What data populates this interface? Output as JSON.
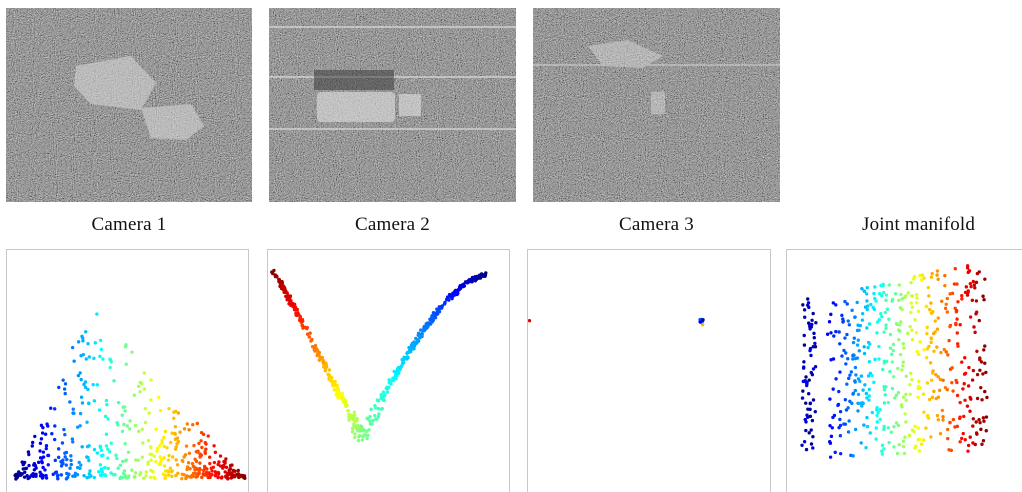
{
  "panels": [
    {
      "label": "Camera 1"
    },
    {
      "label": "Camera 2"
    },
    {
      "label": "Camera 3"
    },
    {
      "label": "Joint manifold"
    }
  ]
}
